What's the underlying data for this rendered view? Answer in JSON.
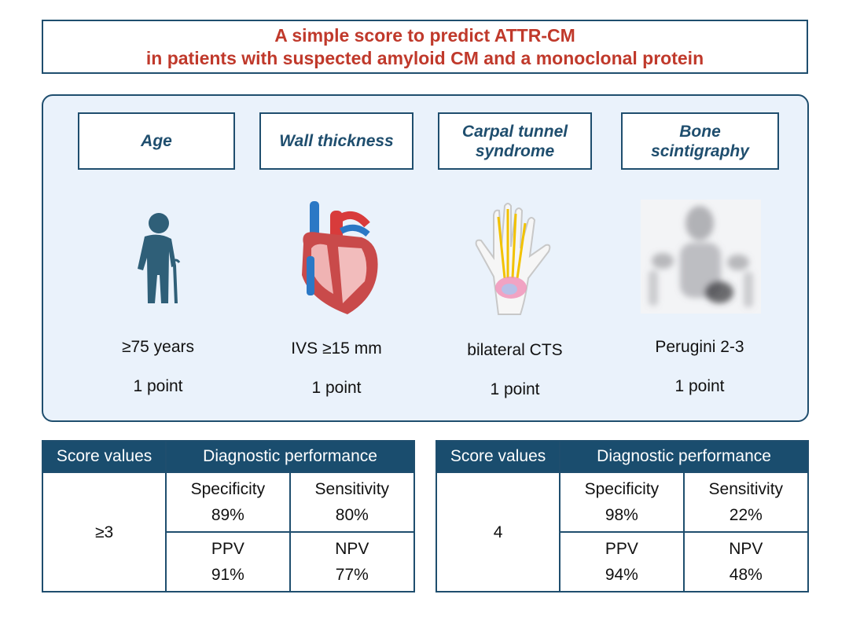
{
  "title": {
    "line1": "A simple score to predict ATTR-CM",
    "line2": "in patients with suspected amyloid CM and a monoclonal protein"
  },
  "criteria": [
    {
      "label": "Age",
      "icon": "elderly-person-icon",
      "value": "≥75 years",
      "points": "1 point"
    },
    {
      "label": "Wall thickness",
      "icon": "heart-icon",
      "value": "IVS ≥15 mm",
      "points": "1 point"
    },
    {
      "label": "Carpal tunnel syndrome",
      "icon": "hand-icon",
      "value": "bilateral CTS",
      "points": "1 point"
    },
    {
      "label": "Bone scintigraphy",
      "icon": "scintigraphy-image-icon",
      "value": "Perugini 2-3",
      "points": "1 point"
    }
  ],
  "tables": [
    {
      "header_score": "Score values",
      "header_perf": "Diagnostic performance",
      "score": "≥3",
      "specificity_label": "Specificity",
      "specificity": "89%",
      "sensitivity_label": "Sensitivity",
      "sensitivity": "80%",
      "ppv_label": "PPV",
      "ppv": "91%",
      "npv_label": "NPV",
      "npv": "77%"
    },
    {
      "header_score": "Score values",
      "header_perf": "Diagnostic performance",
      "score": "4",
      "specificity_label": "Specificity",
      "specificity": "98%",
      "sensitivity_label": "Sensitivity",
      "sensitivity": "22%",
      "ppv_label": "PPV",
      "ppv": "94%",
      "npv_label": "NPV",
      "npv": "48%"
    }
  ],
  "colors": {
    "title_red": "#c0392b",
    "navy": "#1f4e6e",
    "header_fill": "#1a4d6e",
    "panel_fill": "#eaf2fb"
  }
}
